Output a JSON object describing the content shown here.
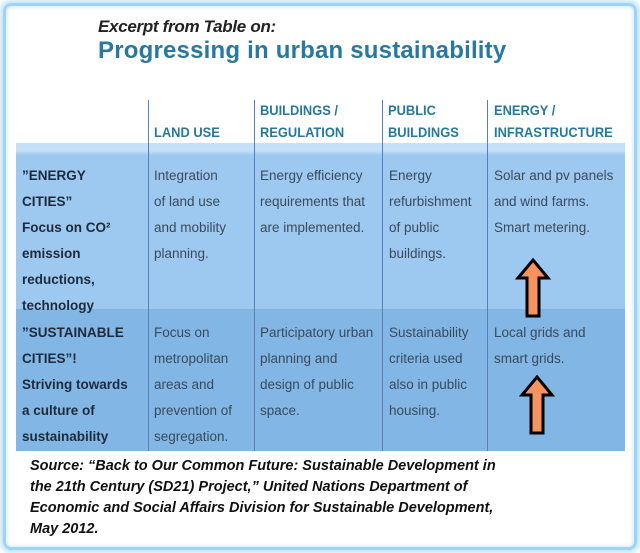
{
  "header": {
    "subtitle": "Excerpt from Table on:",
    "title": "Progressing in urban sustainability"
  },
  "columns": [
    "LAND USE",
    "BUILDINGS /\nREGULATION",
    "PUBLIC\nBUILDINGS",
    "ENERGY /\nINFRASTRUCTURE"
  ],
  "rows": [
    {
      "label": "”ENERGY\nCITIES”\nFocus on CO²\nemission\nreductions,\ntechnology",
      "cells": [
        "Integration\nof land use\nand mobility\nplanning.",
        "Energy efficiency\nrequirements that\nare implemented.",
        "Energy\nrefurbishment\nof public\nbuildings.",
        "Solar and pv panels\nand wind farms.\nSmart metering."
      ],
      "arrow": "up-arrow-icon"
    },
    {
      "label": "”SUSTAINABLE\nCITIES”!\nStriving towards\na culture of\nsustainability",
      "cells": [
        "Focus on\nmetropolitan\nareas and\nprevention of\nsegregation.",
        "Participatory urban\nplanning and\ndesign of public\nspace.",
        "Sustainability\ncriteria used\nalso in public\nhousing.",
        "Local grids and\nsmart grids."
      ],
      "arrow": "up-arrow-icon"
    }
  ],
  "source": "Source:  “Back to Our Common Future: Sustainable Development in\nthe 21th Century (SD21) Project,” United Nations Department of\nEconomic and Social Affairs Division for Sustainable Development,\nMay 2012.",
  "colors": {
    "title": "#2878a0",
    "row1": "#9dc9f0",
    "row2": "#82b7e5",
    "arrow": "#f7935f",
    "frame": "#9fd3f7"
  }
}
